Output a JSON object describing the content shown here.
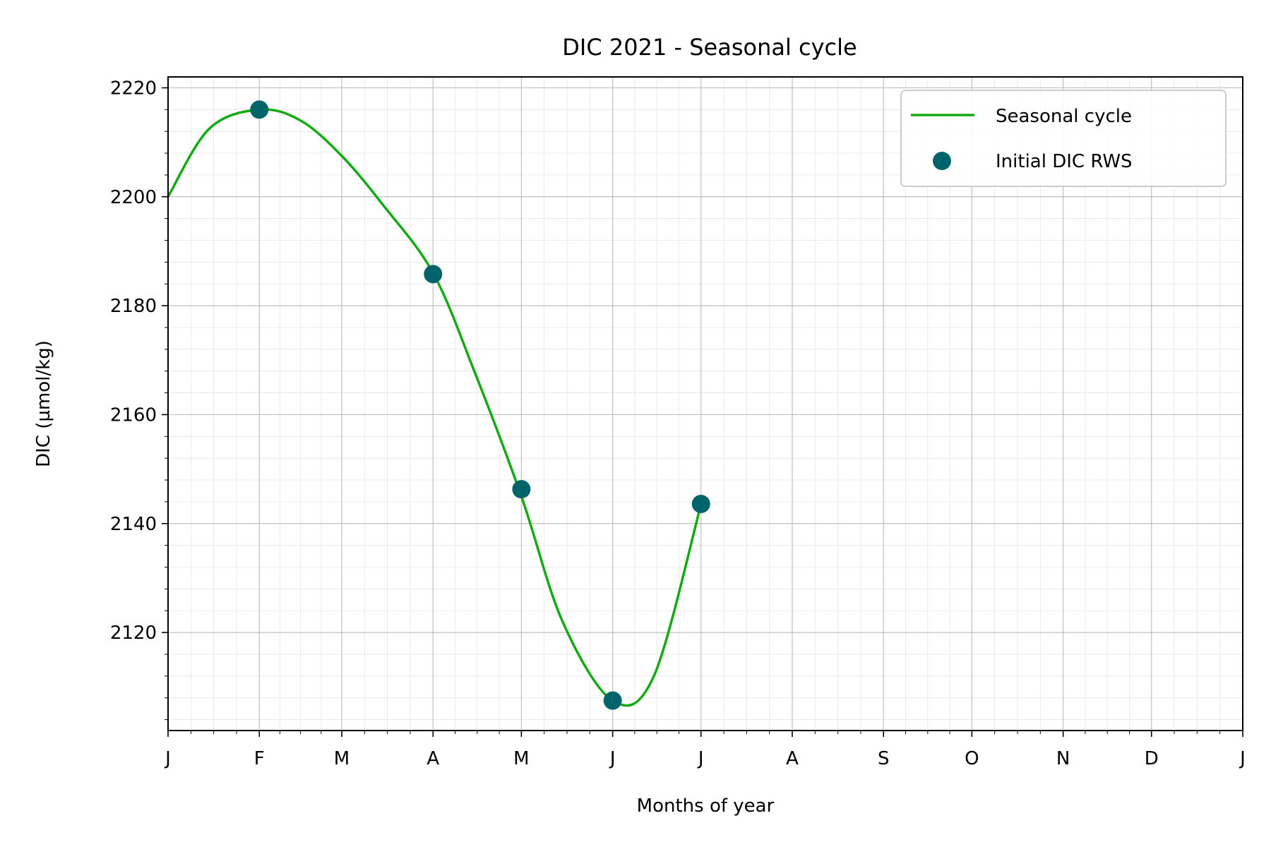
{
  "chart_data": {
    "type": "line",
    "title": "DIC 2021 - Seasonal cycle",
    "xlabel": "Months of year",
    "ylabel": "DIC (µmol/kg)",
    "x_tick_labels": [
      "J",
      "F",
      "M",
      "A",
      "M",
      "J",
      "J",
      "A",
      "S",
      "O",
      "N",
      "D",
      "J"
    ],
    "x_tick_dates": [
      "2021-01-01",
      "2021-02-01",
      "2021-03-01",
      "2021-04-01",
      "2021-05-01",
      "2021-06-01",
      "2021-07-01",
      "2021-08-01",
      "2021-09-01",
      "2021-10-01",
      "2021-11-01",
      "2021-12-01",
      "2022-01-01"
    ],
    "xlim": [
      "2021-01-01",
      "2022-01-01"
    ],
    "ylim": [
      2102,
      2222
    ],
    "y_ticks": [
      2120,
      2140,
      2160,
      2180,
      2200,
      2220
    ],
    "grid": true,
    "minor_grid": true,
    "legend_position": "top-right",
    "series": [
      {
        "name": "Seasonal cycle",
        "kind": "line",
        "color": "#14aa14",
        "x": [
          "2021-01-01",
          "2021-01-15",
          "2021-02-01",
          "2021-02-15",
          "2021-03-01",
          "2021-03-15",
          "2021-04-01",
          "2021-04-15",
          "2021-05-01",
          "2021-05-15",
          "2021-06-01",
          "2021-06-15",
          "2021-07-01"
        ],
        "y": [
          2200,
          2212.5,
          2216,
          2214,
          2207.5,
          2198.5,
          2186,
          2168,
          2145,
          2122,
          2107.5,
          2112,
          2143.5
        ]
      },
      {
        "name": "Initial DIC RWS",
        "kind": "scatter",
        "color": "#00646a",
        "x": [
          "2021-02-01",
          "2021-04-01",
          "2021-05-01",
          "2021-06-01",
          "2021-07-01"
        ],
        "y": [
          2216,
          2185.8,
          2146.3,
          2107.5,
          2143.6
        ]
      }
    ]
  }
}
